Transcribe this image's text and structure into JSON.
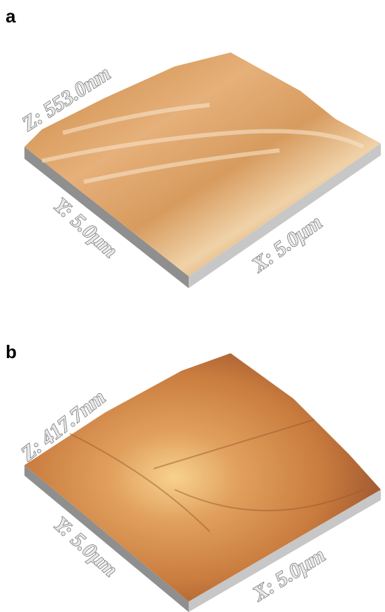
{
  "panels": [
    {
      "label": "a",
      "z_label": "Z: 553.0nm",
      "y_label": "Y: 5.0μm",
      "x_label": "X: 5.0μm"
    },
    {
      "label": "b",
      "z_label": "Z: 417.7nm",
      "y_label": "Y: 5.0μm",
      "x_label": "X: 5.0μm"
    }
  ]
}
